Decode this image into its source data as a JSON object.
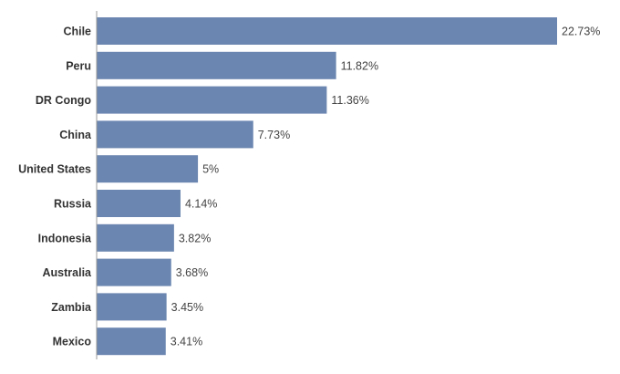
{
  "colors": {
    "bar": "#6b86b0",
    "axis": "#999999",
    "label": "#333333",
    "value": "#444444"
  },
  "chart_data": {
    "type": "bar",
    "orientation": "horizontal",
    "categories": [
      "Chile",
      "Peru",
      "DR Congo",
      "China",
      "United States",
      "Russia",
      "Indonesia",
      "Australia",
      "Zambia",
      "Mexico"
    ],
    "values": [
      22.73,
      11.82,
      11.36,
      7.73,
      5,
      4.14,
      3.82,
      3.68,
      3.45,
      3.41
    ],
    "value_labels": [
      "22.73%",
      "11.82%",
      "11.36%",
      "7.73%",
      "5%",
      "4.14%",
      "3.82%",
      "3.68%",
      "3.45%",
      "3.41%"
    ],
    "title": "",
    "xlabel": "",
    "ylabel": "",
    "xlim": [
      0,
      22.73
    ],
    "grid": false,
    "legend": "none"
  }
}
